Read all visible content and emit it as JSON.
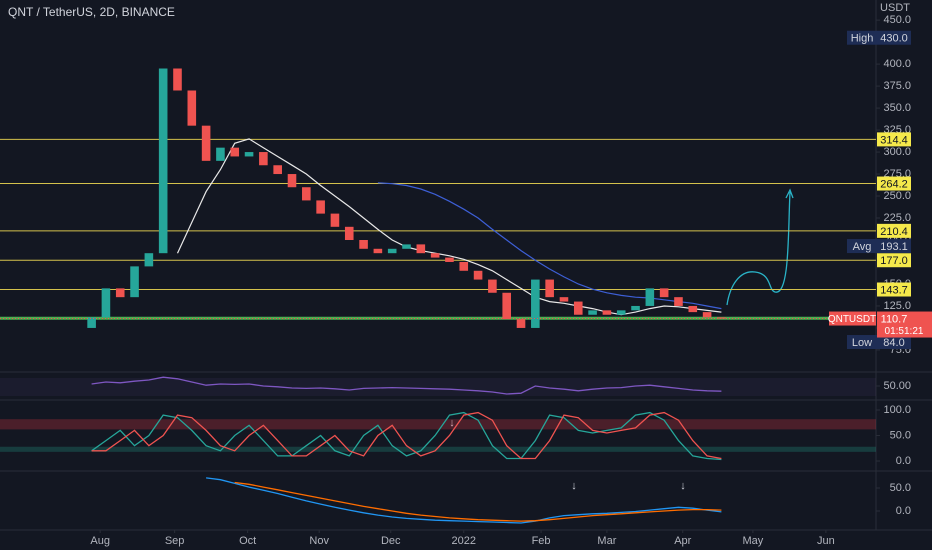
{
  "chart_data": [
    {
      "type": "candlestick",
      "title": "QNT / TetherUS, 2D, BINANCE",
      "currency": "USDT",
      "xlim": [
        -6.4,
        54.8
      ],
      "xticks": [
        {
          "value": 0.6,
          "label": "Aug"
        },
        {
          "value": 5.8,
          "label": "Sep"
        },
        {
          "value": 10.9,
          "label": "Oct"
        },
        {
          "value": 15.9,
          "label": "Nov"
        },
        {
          "value": 20.9,
          "label": "Dec"
        },
        {
          "value": 26.0,
          "label": "2022"
        },
        {
          "value": 31.4,
          "label": "Feb"
        },
        {
          "value": 36.0,
          "label": "Mar"
        },
        {
          "value": 41.3,
          "label": "Apr"
        },
        {
          "value": 46.2,
          "label": "May"
        },
        {
          "value": 51.3,
          "label": "Jun"
        }
      ],
      "ylim": [
        49.9,
        472.9
      ],
      "yticks": [
        {
          "value": 450,
          "label": "450.0"
        },
        {
          "value": 400,
          "label": "400.0"
        },
        {
          "value": 375,
          "label": "375.0"
        },
        {
          "value": 350,
          "label": "350.0"
        },
        {
          "value": 325,
          "label": "325.0"
        },
        {
          "value": 300,
          "label": "300.0"
        },
        {
          "value": 275,
          "label": "275.0"
        },
        {
          "value": 250,
          "label": "250.0"
        },
        {
          "value": 225,
          "label": "225.0"
        },
        {
          "value": 200,
          "label": "200.0"
        },
        {
          "value": 150,
          "label": "150.0"
        },
        {
          "value": 125,
          "label": "125.0"
        },
        {
          "value": 100,
          "label": "100.0"
        },
        {
          "value": 75,
          "label": "75.0"
        }
      ],
      "up_color": "#26a69a",
      "down_color": "#ef5350",
      "open": [
        100,
        112,
        145,
        135,
        170,
        185,
        395,
        370,
        330,
        290,
        305,
        295,
        300,
        285,
        275,
        260,
        245,
        230,
        215,
        200,
        190,
        185,
        190,
        195,
        185,
        180,
        175,
        165,
        155,
        140,
        110,
        100,
        155,
        135,
        130,
        115,
        120,
        115,
        120,
        125,
        145,
        135,
        125,
        118,
        112
      ],
      "high": {
        "value": 430,
        "label": "430.0"
      },
      "low": {
        "value": 84,
        "label": "84.0"
      },
      "close": [
        112,
        145,
        135,
        170,
        185,
        395,
        370,
        330,
        290,
        305,
        295,
        300,
        285,
        275,
        260,
        245,
        230,
        215,
        200,
        190,
        185,
        190,
        195,
        185,
        180,
        175,
        165,
        155,
        140,
        110,
        100,
        155,
        135,
        130,
        115,
        120,
        115,
        120,
        125,
        145,
        135,
        125,
        118,
        112,
        110.7
      ],
      "overlays": [
        {
          "color": "#e8e8e8",
          "values": [
            null,
            null,
            null,
            null,
            null,
            null,
            185,
            220,
            255,
            280,
            310,
            315,
            305,
            295,
            285,
            275,
            262,
            250,
            238,
            225,
            212,
            200,
            192,
            188,
            185,
            182,
            178,
            172,
            165,
            155,
            145,
            135,
            130,
            128,
            125,
            122,
            118,
            115,
            118,
            122,
            125,
            124,
            122,
            120,
            118
          ]
        },
        {
          "color": "#3d5fd6",
          "values": [
            null,
            null,
            null,
            null,
            null,
            null,
            null,
            null,
            null,
            null,
            null,
            null,
            null,
            null,
            null,
            null,
            null,
            null,
            null,
            null,
            265,
            264,
            262,
            258,
            252,
            244,
            235,
            225,
            212,
            200,
            188,
            177,
            167,
            158,
            150,
            144,
            140,
            137,
            135,
            134,
            132,
            130,
            128,
            125,
            122
          ]
        }
      ],
      "levels": [
        314.4,
        264.2,
        210.4,
        {
          "value": 177.0,
          "label": "177.0"
        },
        143.7
      ],
      "level_color": "#d4c24c",
      "support": 111,
      "support_color": "#4caf50",
      "high_label": "High",
      "avg_label": "Avg",
      "avg": 193.1,
      "low_label": "Low",
      "last_symbol": "QNTUSDT",
      "last_price": 110.7,
      "countdown": "01:51:21"
    },
    {
      "type": "line",
      "ylim": [
        20,
        80
      ],
      "yticks": [
        {
          "value": 50,
          "label": "50.00"
        }
      ],
      "series": [
        {
          "color": "#7e57c2",
          "values": [
            55,
            60,
            58,
            62,
            65,
            72,
            68,
            60,
            52,
            55,
            54,
            55,
            50,
            48,
            45,
            44,
            45,
            43,
            40,
            44,
            45,
            46,
            45,
            44,
            43,
            42,
            40,
            38,
            35,
            30,
            32,
            50,
            45,
            42,
            38,
            42,
            45,
            46,
            50,
            52,
            48,
            44,
            40,
            38,
            37
          ]
        }
      ]
    },
    {
      "type": "line",
      "ylim": [
        -17.6,
        115.7
      ],
      "yticks": [
        {
          "value": 100,
          "label": "100.0"
        },
        {
          "value": 50,
          "label": "50.0"
        },
        {
          "value": 0,
          "label": "0.0"
        }
      ],
      "bands": [
        {
          "from": 62,
          "to": 82,
          "color": "#f23645"
        },
        {
          "from": 18,
          "to": 28,
          "color": "#22ab94"
        }
      ],
      "series": [
        {
          "color": "#26a69a",
          "values": [
            20,
            40,
            60,
            30,
            50,
            90,
            85,
            60,
            30,
            20,
            50,
            70,
            40,
            10,
            10,
            30,
            50,
            20,
            10,
            50,
            70,
            30,
            10,
            20,
            50,
            90,
            95,
            80,
            30,
            5,
            5,
            40,
            90,
            85,
            60,
            55,
            60,
            65,
            90,
            95,
            80,
            40,
            10,
            5,
            3
          ]
        },
        {
          "color": "#ef5350",
          "values": [
            20,
            20,
            40,
            60,
            30,
            50,
            90,
            85,
            60,
            30,
            20,
            50,
            70,
            40,
            10,
            10,
            30,
            50,
            20,
            10,
            50,
            70,
            30,
            10,
            20,
            50,
            90,
            95,
            80,
            30,
            5,
            5,
            40,
            90,
            85,
            60,
            55,
            60,
            65,
            90,
            95,
            80,
            40,
            10,
            5
          ]
        }
      ],
      "annotations": [
        "↓"
      ]
    },
    {
      "type": "line",
      "ylim": [
        -41.3,
        84.8
      ],
      "yticks": [
        {
          "value": 50,
          "label": "50.0"
        },
        {
          "value": 0,
          "label": "0.0"
        }
      ],
      "series": [
        {
          "color": "#2196f3",
          "values": [
            null,
            null,
            null,
            null,
            null,
            null,
            null,
            null,
            72,
            68,
            60,
            52,
            45,
            38,
            30,
            22,
            15,
            8,
            2,
            -4,
            -9,
            -13,
            -16,
            -18,
            -20,
            -21,
            -22,
            -23,
            -24,
            -25,
            -26,
            -22,
            -15,
            -10,
            -8,
            -6,
            -5,
            -3,
            -1,
            2,
            5,
            8,
            6,
            2,
            -2
          ]
        },
        {
          "color": "#ff6d00",
          "values": [
            null,
            null,
            null,
            null,
            null,
            null,
            null,
            null,
            null,
            null,
            62,
            58,
            52,
            46,
            40,
            34,
            28,
            22,
            16,
            10,
            5,
            0,
            -5,
            -9,
            -12,
            -15,
            -17,
            -19,
            -20,
            -21,
            -22,
            -21,
            -19,
            -16,
            -13,
            -10,
            -8,
            -6,
            -4,
            -2,
            0,
            2,
            3,
            3,
            2
          ]
        }
      ],
      "annotations": [
        "↓",
        "↓"
      ]
    }
  ]
}
